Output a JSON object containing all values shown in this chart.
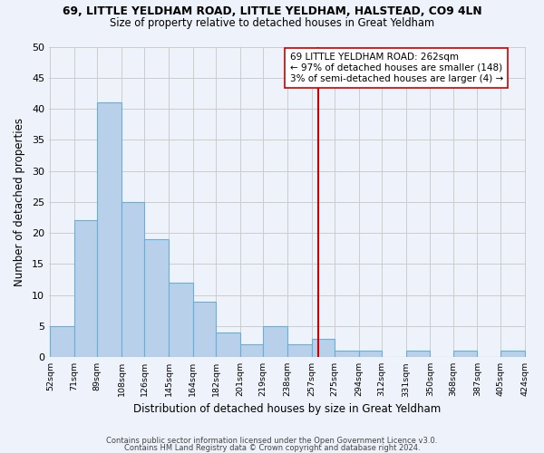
{
  "title": "69, LITTLE YELDHAM ROAD, LITTLE YELDHAM, HALSTEAD, CO9 4LN",
  "subtitle": "Size of property relative to detached houses in Great Yeldham",
  "xlabel": "Distribution of detached houses by size in Great Yeldham",
  "ylabel": "Number of detached properties",
  "footer1": "Contains HM Land Registry data © Crown copyright and database right 2024.",
  "footer2": "Contains public sector information licensed under the Open Government Licence v3.0.",
  "bar_edges": [
    52,
    71,
    89,
    108,
    126,
    145,
    164,
    182,
    201,
    219,
    238,
    257,
    275,
    294,
    312,
    331,
    350,
    368,
    387,
    405,
    424
  ],
  "bar_heights": [
    5,
    22,
    41,
    25,
    19,
    12,
    9,
    4,
    2,
    5,
    2,
    3,
    1,
    1,
    0,
    1,
    0,
    1,
    0,
    1
  ],
  "bar_color": "#b8d0ea",
  "bar_edgecolor": "#6aaed6",
  "bar_linewidth": 0.8,
  "vline_x": 262,
  "vline_color": "#cc0000",
  "ylim": [
    0,
    50
  ],
  "yticks": [
    0,
    5,
    10,
    15,
    20,
    25,
    30,
    35,
    40,
    45,
    50
  ],
  "annotation_title": "69 LITTLE YELDHAM ROAD: 262sqm",
  "annotation_line1": "← 97% of detached houses are smaller (148)",
  "annotation_line2": "3% of semi-detached houses are larger (4) →",
  "grid_color": "#cccccc",
  "background_color": "#eef2fa"
}
